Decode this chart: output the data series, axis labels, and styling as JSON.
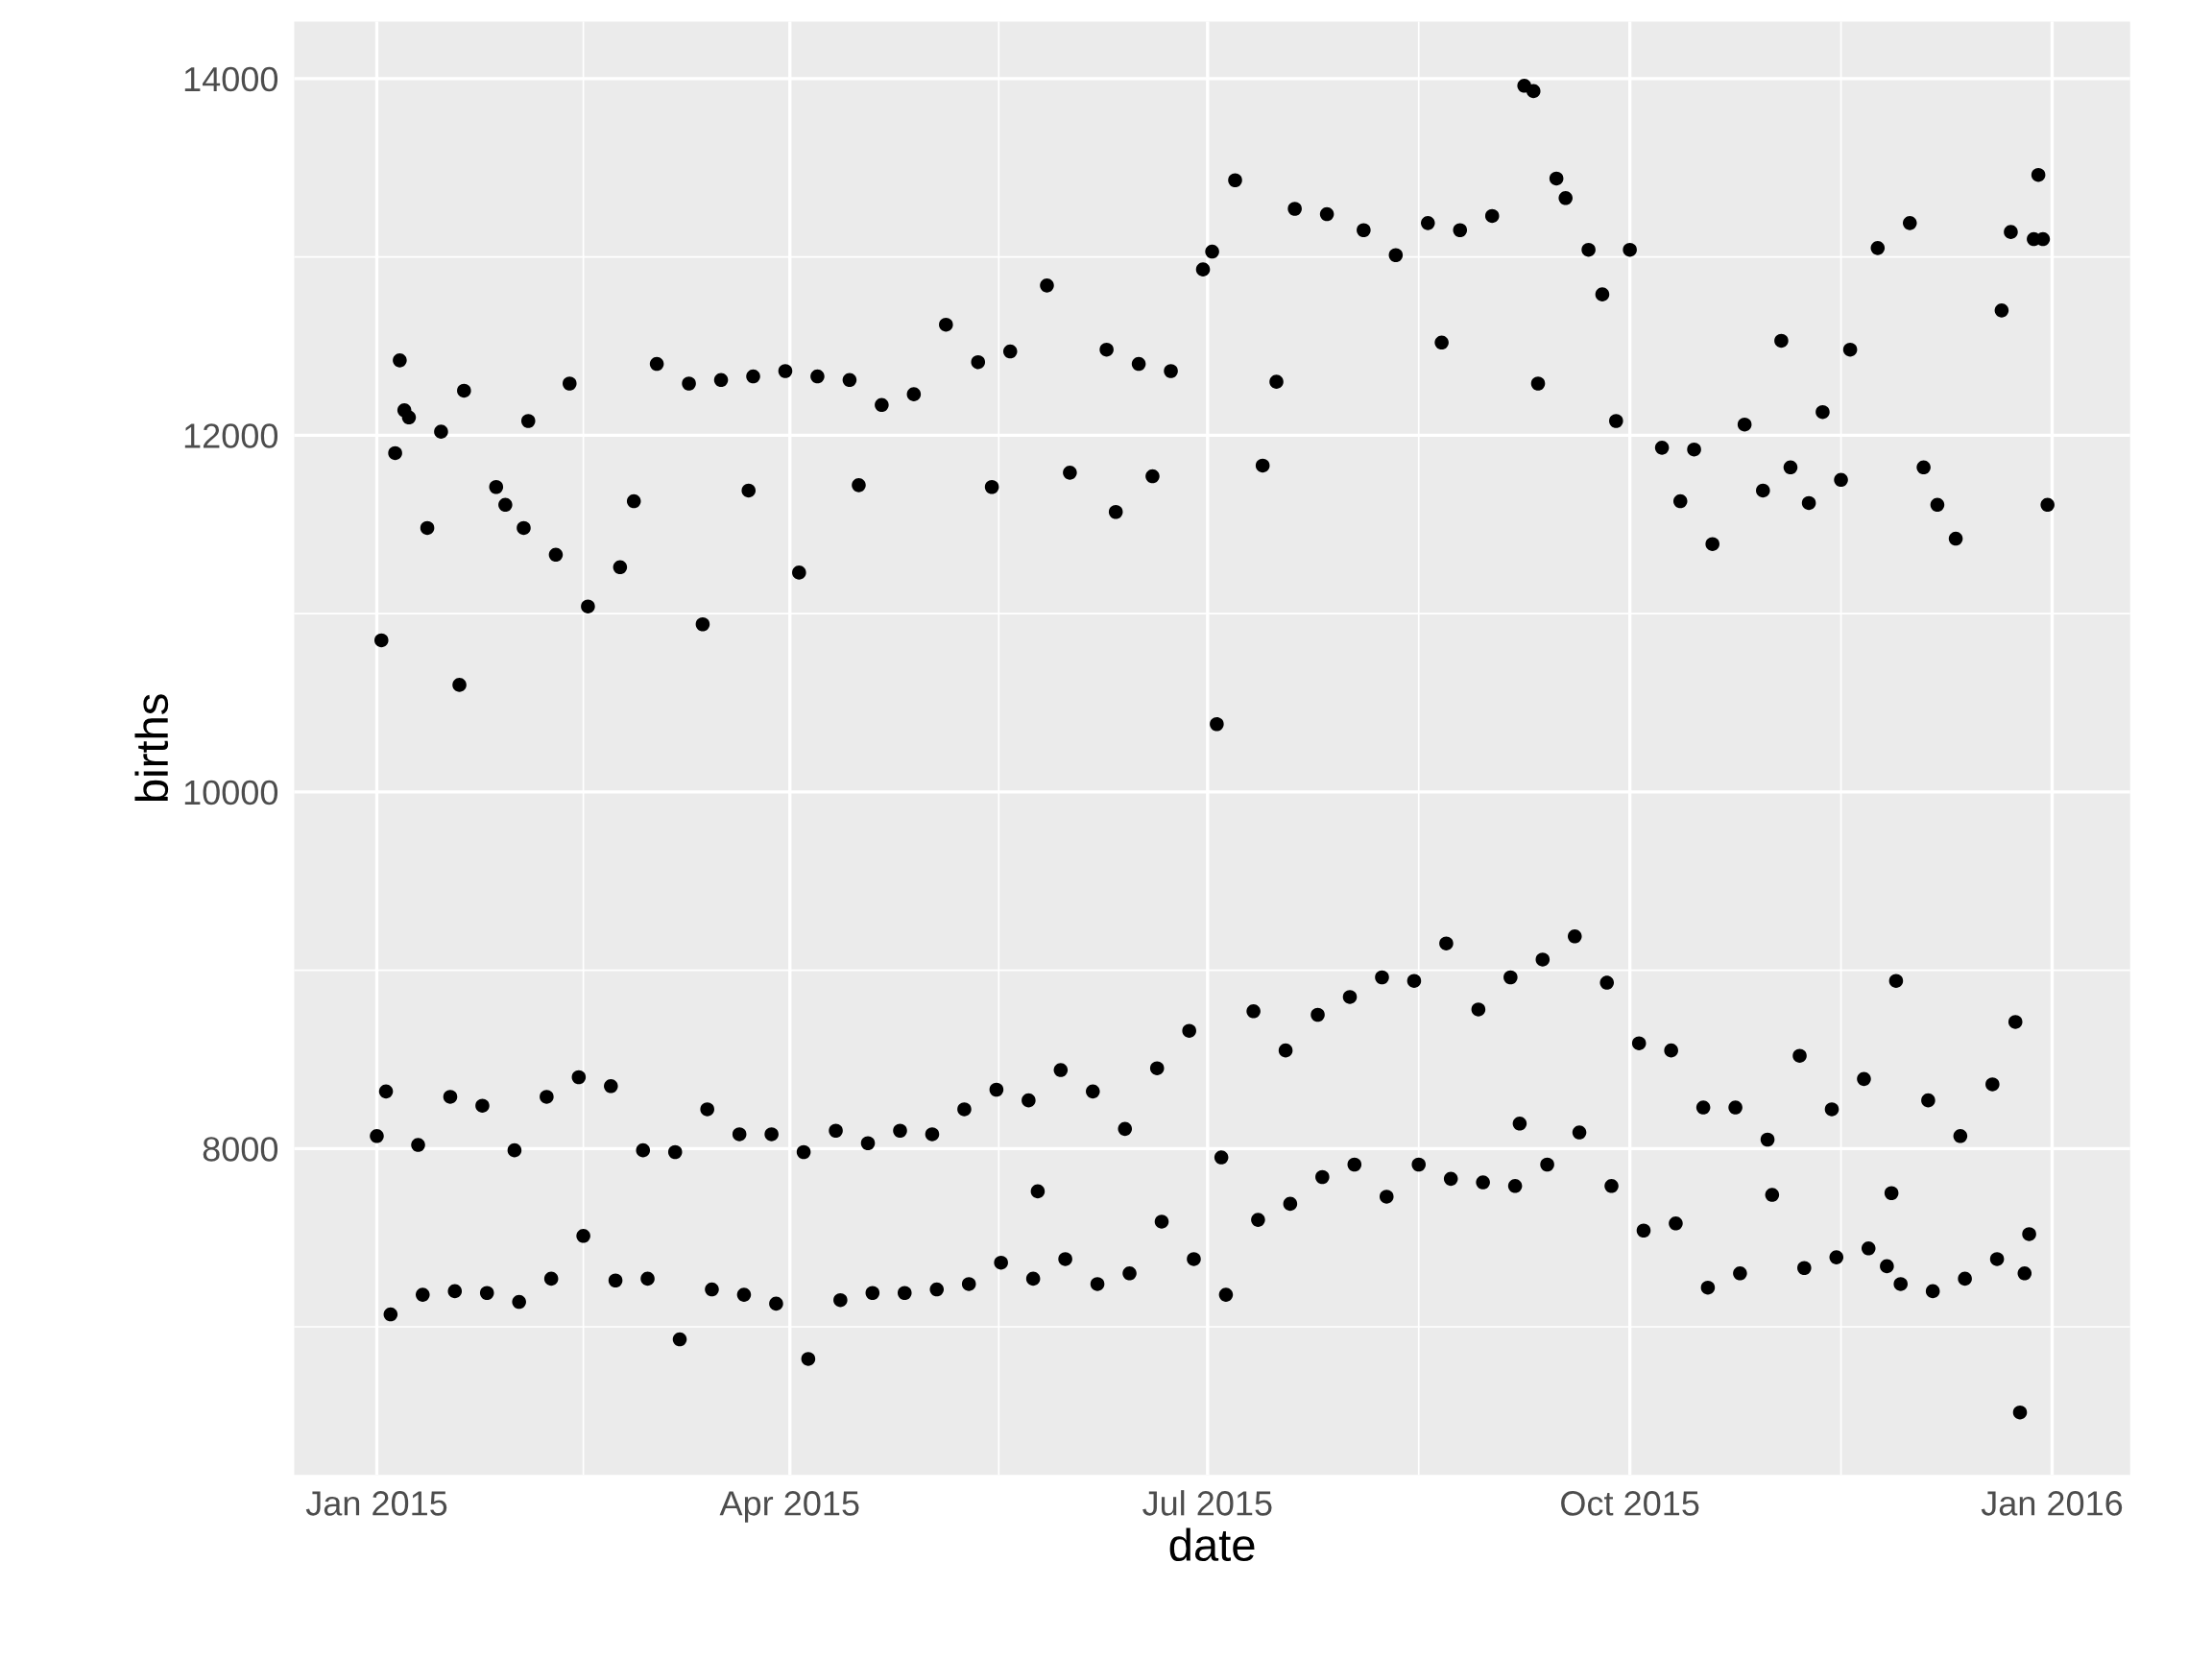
{
  "chart_data": {
    "type": "scatter",
    "xlabel": "date",
    "ylabel": "births",
    "x": [
      "2015-01-01",
      "2015-01-02",
      "2015-01-03",
      "2015-01-04",
      "2015-01-05",
      "2015-01-06",
      "2015-01-07",
      "2015-01-08",
      "2015-01-10",
      "2015-01-11",
      "2015-01-12",
      "2015-01-15",
      "2015-01-17",
      "2015-01-18",
      "2015-01-19",
      "2015-01-20",
      "2015-01-24",
      "2015-01-25",
      "2015-01-27",
      "2015-01-29",
      "2015-01-31",
      "2015-02-01",
      "2015-02-02",
      "2015-02-03",
      "2015-02-07",
      "2015-02-08",
      "2015-02-09",
      "2015-02-12",
      "2015-02-14",
      "2015-02-15",
      "2015-02-16",
      "2015-02-21",
      "2015-02-22",
      "2015-02-23",
      "2015-02-26",
      "2015-02-28",
      "2015-03-01",
      "2015-03-03",
      "2015-03-07",
      "2015-03-08",
      "2015-03-10",
      "2015-03-13",
      "2015-03-14",
      "2015-03-15",
      "2015-03-17",
      "2015-03-21",
      "2015-03-22",
      "2015-03-23",
      "2015-03-24",
      "2015-03-28",
      "2015-03-29",
      "2015-03-31",
      "2015-04-03",
      "2015-04-04",
      "2015-04-05",
      "2015-04-07",
      "2015-04-11",
      "2015-04-12",
      "2015-04-14",
      "2015-04-16",
      "2015-04-18",
      "2015-04-19",
      "2015-04-21",
      "2015-04-25",
      "2015-04-26",
      "2015-04-28",
      "2015-05-02",
      "2015-05-03",
      "2015-05-05",
      "2015-05-09",
      "2015-05-10",
      "2015-05-12",
      "2015-05-15",
      "2015-05-16",
      "2015-05-17",
      "2015-05-19",
      "2015-05-23",
      "2015-05-24",
      "2015-05-25",
      "2015-05-27",
      "2015-05-30",
      "2015-05-31",
      "2015-06-01",
      "2015-06-06",
      "2015-06-07",
      "2015-06-09",
      "2015-06-11",
      "2015-06-13",
      "2015-06-14",
      "2015-06-16",
      "2015-06-19",
      "2015-06-20",
      "2015-06-21",
      "2015-06-23",
      "2015-06-27",
      "2015-06-28",
      "2015-06-30",
      "2015-07-02",
      "2015-07-03",
      "2015-07-04",
      "2015-07-05",
      "2015-07-07",
      "2015-07-11",
      "2015-07-12",
      "2015-07-13",
      "2015-07-16",
      "2015-07-18",
      "2015-07-19",
      "2015-07-20",
      "2015-07-25",
      "2015-07-26",
      "2015-07-27",
      "2015-08-01",
      "2015-08-02",
      "2015-08-04",
      "2015-08-08",
      "2015-08-09",
      "2015-08-11",
      "2015-08-15",
      "2015-08-16",
      "2015-08-18",
      "2015-08-21",
      "2015-08-22",
      "2015-08-23",
      "2015-08-25",
      "2015-08-29",
      "2015-08-30",
      "2015-09-01",
      "2015-09-05",
      "2015-09-06",
      "2015-09-07",
      "2015-09-08",
      "2015-09-10",
      "2015-09-11",
      "2015-09-12",
      "2015-09-13",
      "2015-09-15",
      "2015-09-17",
      "2015-09-19",
      "2015-09-20",
      "2015-09-22",
      "2015-09-25",
      "2015-09-26",
      "2015-09-27",
      "2015-09-28",
      "2015-10-01",
      "2015-10-03",
      "2015-10-04",
      "2015-10-08",
      "2015-10-10",
      "2015-10-11",
      "2015-10-12",
      "2015-10-15",
      "2015-10-17",
      "2015-10-18",
      "2015-10-19",
      "2015-10-24",
      "2015-10-25",
      "2015-10-26",
      "2015-10-30",
      "2015-10-31",
      "2015-11-01",
      "2015-11-03",
      "2015-11-05",
      "2015-11-07",
      "2015-11-08",
      "2015-11-09",
      "2015-11-12",
      "2015-11-14",
      "2015-11-15",
      "2015-11-16",
      "2015-11-18",
      "2015-11-21",
      "2015-11-22",
      "2015-11-24",
      "2015-11-26",
      "2015-11-27",
      "2015-11-28",
      "2015-11-29",
      "2015-12-01",
      "2015-12-04",
      "2015-12-05",
      "2015-12-06",
      "2015-12-07",
      "2015-12-11",
      "2015-12-12",
      "2015-12-13",
      "2015-12-19",
      "2015-12-20",
      "2015-12-21",
      "2015-12-23",
      "2015-12-24",
      "2015-12-25",
      "2015-12-26",
      "2015-12-27",
      "2015-12-28",
      "2015-12-29",
      "2015-12-30",
      "2015-12-31"
    ],
    "series": [
      {
        "color": "#000000",
        "values": [
          8070,
          10850,
          8320,
          7070,
          11900,
          12420,
          12140,
          12100,
          8020,
          7180,
          11480,
          12020,
          8290,
          7200,
          10600,
          12250,
          8240,
          7190,
          11710,
          11610,
          7990,
          7140,
          11480,
          12080,
          8290,
          7270,
          11330,
          12290,
          8400,
          7510,
          11040,
          8350,
          7260,
          11260,
          11630,
          7990,
          7270,
          12400,
          7980,
          6930,
          12290,
          10940,
          8220,
          7210,
          12310,
          8080,
          7180,
          11690,
          12330,
          8080,
          7130,
          12360,
          11230,
          7980,
          6820,
          12330,
          8100,
          7150,
          12310,
          11720,
          8030,
          7190,
          12170,
          8100,
          7190,
          12230,
          8080,
          7210,
          12620,
          8220,
          7240,
          12410,
          11710,
          8330,
          7360,
          12470,
          8270,
          7270,
          7760,
          12840,
          8440,
          7380,
          11790,
          8320,
          7240,
          12480,
          11570,
          8110,
          7300,
          12400,
          11770,
          8450,
          7590,
          12360,
          8660,
          7380,
          12930,
          13030,
          10380,
          7950,
          7180,
          13430,
          8770,
          7600,
          11830,
          12300,
          8550,
          7690,
          13270,
          8750,
          7840,
          13240,
          8850,
          7910,
          13150,
          8960,
          7730,
          13010,
          8940,
          7910,
          13190,
          12520,
          9150,
          7830,
          13150,
          8780,
          7810,
          13230,
          8960,
          7790,
          8140,
          13960,
          13930,
          12290,
          9060,
          7910,
          13440,
          13330,
          9190,
          8090,
          13040,
          12790,
          8930,
          7790,
          12080,
          13040,
          8590,
          7540,
          11930,
          8550,
          7580,
          11630,
          11920,
          8230,
          7220,
          11390,
          8230,
          7300,
          12060,
          11690,
          8050,
          7740,
          12530,
          11820,
          8520,
          7330,
          11620,
          12130,
          8220,
          7390,
          11750,
          12480,
          8390,
          7440,
          13050,
          7340,
          7750,
          8940,
          7240,
          13190,
          11820,
          8270,
          7200,
          11610,
          11420,
          8070,
          7270,
          8360,
          7380,
          12700,
          13140,
          8710,
          6520,
          7300,
          7520,
          13100,
          13460,
          13100,
          11610
        ]
      }
    ],
    "marker": "circle",
    "xlim": [
      "2014-12-14",
      "2016-01-18"
    ],
    "xticks": [
      {
        "value": "2015-01-01",
        "label": "Jan 2015"
      },
      {
        "value": "2015-04-01",
        "label": "Apr 2015"
      },
      {
        "value": "2015-07-01",
        "label": "Jul 2015"
      },
      {
        "value": "2015-10-01",
        "label": "Oct 2015"
      },
      {
        "value": "2016-01-01",
        "label": "Jan 2016"
      }
    ],
    "ylim": [
      6170,
      14320
    ],
    "yticks": [
      8000,
      10000,
      12000,
      14000
    ],
    "grid": true
  }
}
